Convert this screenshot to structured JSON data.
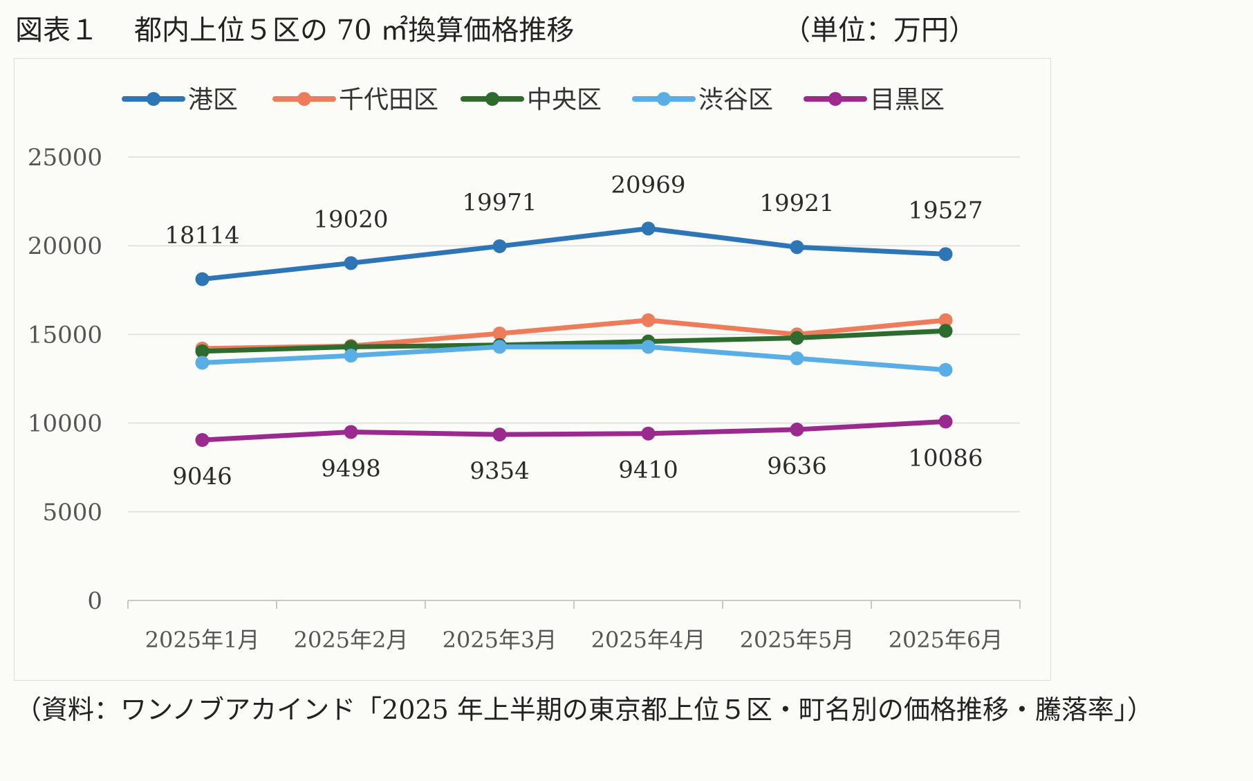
{
  "header": {
    "figure_label": "図表１",
    "title": "都内上位５区の 70 ㎡換算価格推移",
    "unit": "（単位：万円）"
  },
  "source": "（資料：ワンノブアカインド「2025 年上半期の東京都上位５区・町名別の価格推移・騰落率」）",
  "colors": {
    "港区": "#2e75b6",
    "千代田区": "#ed7d5a",
    "中央区": "#2e6b2e",
    "渋谷区": "#5aaee6",
    "目黒区": "#9b2a8e",
    "grid": "#e2e2e2",
    "axis": "#c8c8c8"
  },
  "chart_data": {
    "type": "line",
    "title": "",
    "xlabel": "",
    "ylabel": "",
    "categories": [
      "2025年1月",
      "2025年2月",
      "2025年3月",
      "2025年4月",
      "2025年5月",
      "2025年6月"
    ],
    "ylim": [
      0,
      25000
    ],
    "yticks": [
      0,
      5000,
      10000,
      15000,
      20000,
      25000
    ],
    "grid": true,
    "legend_position": "top",
    "series": [
      {
        "name": "港区",
        "values": [
          18114,
          19020,
          19971,
          20969,
          19921,
          19527
        ],
        "labels_shown": true,
        "label_position": "above"
      },
      {
        "name": "千代田区",
        "values": [
          14200,
          14350,
          15050,
          15800,
          15000,
          15800
        ],
        "labels_shown": false
      },
      {
        "name": "中央区",
        "values": [
          14050,
          14300,
          14400,
          14600,
          14800,
          15200
        ],
        "labels_shown": false
      },
      {
        "name": "渋谷区",
        "values": [
          13400,
          13800,
          14300,
          14300,
          13650,
          13000
        ],
        "labels_shown": false
      },
      {
        "name": "目黒区",
        "values": [
          9046,
          9498,
          9354,
          9410,
          9636,
          10086
        ],
        "labels_shown": true,
        "label_position": "below"
      }
    ]
  }
}
